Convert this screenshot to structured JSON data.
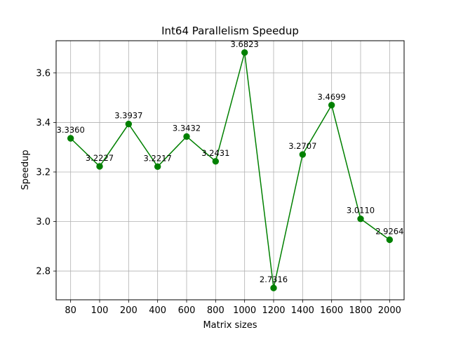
{
  "chart_data": {
    "type": "line",
    "title": "Int64 Parallelism Speedup",
    "xlabel": "Matrix sizes",
    "ylabel": "Speedup",
    "categories": [
      "80",
      "100",
      "200",
      "400",
      "600",
      "800",
      "1000",
      "1200",
      "1400",
      "1600",
      "1800",
      "2000"
    ],
    "series": [
      {
        "values": [
          3.336,
          3.2227,
          3.3937,
          3.2217,
          3.3432,
          3.2431,
          3.6823,
          2.7316,
          3.2707,
          3.4699,
          3.011,
          2.9264
        ],
        "labels": [
          "3.3360",
          "3.2227",
          "3.3937",
          "3.2217",
          "3.3432",
          "3.2431",
          "3.6823",
          "2.7316",
          "3.2707",
          "3.4699",
          "3.0110",
          "2.9264"
        ],
        "color": "#008000",
        "marker": "circle"
      }
    ],
    "yticks": [
      2.8,
      3.0,
      3.2,
      3.4,
      3.6
    ],
    "ytick_labels": [
      "2.8",
      "3.0",
      "3.2",
      "3.4",
      "3.6"
    ],
    "ylim": [
      2.684,
      3.73
    ],
    "grid": true,
    "legend": "none"
  }
}
